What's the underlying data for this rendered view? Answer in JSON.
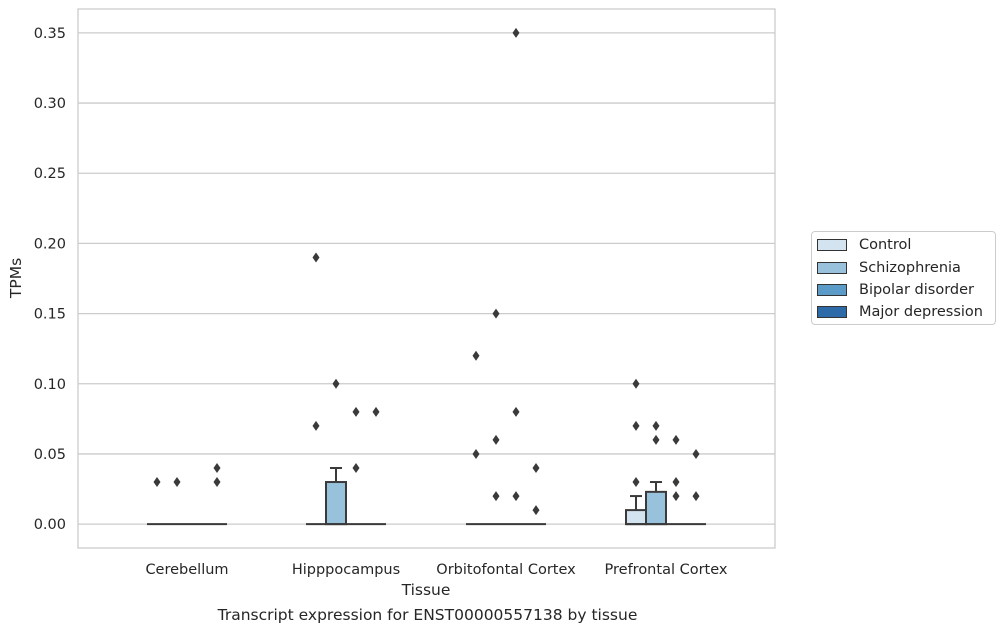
{
  "chart_data": {
    "type": "box",
    "title": "",
    "caption": "Transcript expression for ENST00000557138 by tissue",
    "xlabel": "Tissue",
    "ylabel": "TPMs",
    "ylim": [
      -0.017,
      0.367
    ],
    "yticks": [
      "0.00",
      "0.05",
      "0.10",
      "0.15",
      "0.20",
      "0.25",
      "0.30",
      "0.35"
    ],
    "grid": "horizontal",
    "legend_position": "outside-right",
    "categories": [
      "Cerebellum",
      "Hipppocampus",
      "Orbitofontal Cortex",
      "Prefrontal Cortex"
    ],
    "series": [
      {
        "name": "Control",
        "color": "#d4e3f0",
        "boxes": [
          {
            "q1": 0,
            "median": 0,
            "q3": 0,
            "whisker_low": 0,
            "whisker_high": 0,
            "outliers": [
              0.03
            ]
          },
          {
            "q1": 0,
            "median": 0,
            "q3": 0,
            "whisker_low": 0,
            "whisker_high": 0,
            "outliers": [
              0.19,
              0.07
            ]
          },
          {
            "q1": 0,
            "median": 0,
            "q3": 0,
            "whisker_low": 0,
            "whisker_high": 0,
            "outliers": [
              0.12,
              0.05
            ]
          },
          {
            "q1": 0,
            "median": 0,
            "q3": 0.01,
            "whisker_low": 0,
            "whisker_high": 0.02,
            "outliers": [
              0.1,
              0.07,
              0.03
            ]
          }
        ]
      },
      {
        "name": "Schizophrenia",
        "color": "#98c2dc",
        "boxes": [
          {
            "q1": 0,
            "median": 0,
            "q3": 0,
            "whisker_low": 0,
            "whisker_high": 0,
            "outliers": [
              0.03
            ]
          },
          {
            "q1": 0,
            "median": 0,
            "q3": 0.03,
            "whisker_low": 0,
            "whisker_high": 0.04,
            "outliers": [
              0.1
            ]
          },
          {
            "q1": 0,
            "median": 0,
            "q3": 0,
            "whisker_low": 0,
            "whisker_high": 0,
            "outliers": [
              0.15,
              0.06,
              0.02
            ]
          },
          {
            "q1": 0,
            "median": 0,
            "q3": 0.023,
            "whisker_low": 0,
            "whisker_high": 0.03,
            "outliers": [
              0.07,
              0.06
            ]
          }
        ]
      },
      {
        "name": "Bipolar disorder",
        "color": "#5b9bc8",
        "boxes": [
          {
            "q1": 0,
            "median": 0,
            "q3": 0,
            "whisker_low": 0,
            "whisker_high": 0,
            "outliers": []
          },
          {
            "q1": 0,
            "median": 0,
            "q3": 0,
            "whisker_low": 0,
            "whisker_high": 0,
            "outliers": [
              0.08,
              0.04
            ]
          },
          {
            "q1": 0,
            "median": 0,
            "q3": 0,
            "whisker_low": 0,
            "whisker_high": 0,
            "outliers": [
              0.35,
              0.08,
              0.02
            ]
          },
          {
            "q1": 0,
            "median": 0,
            "q3": 0,
            "whisker_low": 0,
            "whisker_high": 0,
            "outliers": [
              0.06,
              0.03,
              0.02
            ]
          }
        ]
      },
      {
        "name": "Major depression",
        "color": "#2d6aa8",
        "boxes": [
          {
            "q1": 0,
            "median": 0,
            "q3": 0,
            "whisker_low": 0,
            "whisker_high": 0,
            "outliers": [
              0.04,
              0.03
            ]
          },
          {
            "q1": 0,
            "median": 0,
            "q3": 0,
            "whisker_low": 0,
            "whisker_high": 0,
            "outliers": [
              0.08
            ]
          },
          {
            "q1": 0,
            "median": 0,
            "q3": 0,
            "whisker_low": 0,
            "whisker_high": 0,
            "outliers": [
              0.04,
              0.01
            ]
          },
          {
            "q1": 0,
            "median": 0,
            "q3": 0,
            "whisker_low": 0,
            "whisker_high": 0,
            "outliers": [
              0.05,
              0.02
            ]
          }
        ]
      }
    ]
  }
}
